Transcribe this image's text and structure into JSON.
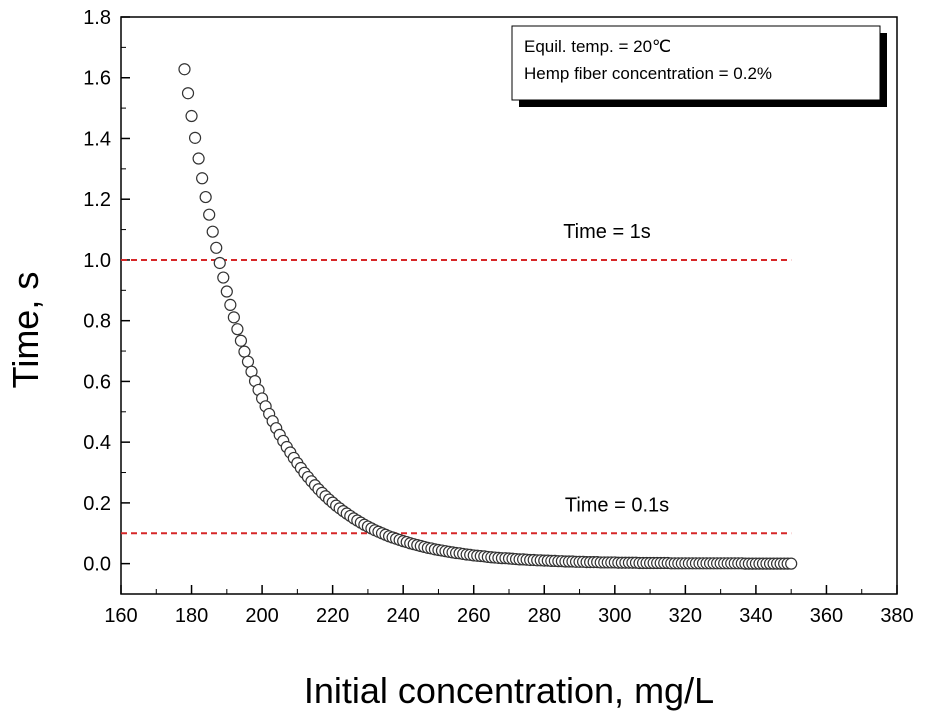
{
  "chart_data": {
    "type": "scatter",
    "xlabel": "Initial concentration, mg/L",
    "ylabel": "Time, s",
    "xlim": [
      160,
      380
    ],
    "ylim": [
      -0.1,
      1.8
    ],
    "xticks": [
      160,
      180,
      200,
      220,
      240,
      260,
      280,
      300,
      320,
      340,
      360,
      380
    ],
    "yticks": [
      0.0,
      0.2,
      0.4,
      0.6,
      0.8,
      1.0,
      1.2,
      1.4,
      1.6,
      1.8
    ],
    "ytick_labels": [
      "0.0",
      "0.2",
      "0.4",
      "0.6",
      "0.8",
      "1.0",
      "1.2",
      "1.4",
      "1.6",
      "1.8"
    ],
    "grid": false,
    "legend": {
      "placement": "top-right",
      "lines": [
        "Equil. temp. = 20℃",
        "Hemp fiber concentration = 0.2%"
      ]
    },
    "reference_lines": [
      {
        "y": 1.0,
        "label": "Time = 1s",
        "color": "#d62728",
        "style": "dashed"
      },
      {
        "y": 0.1,
        "label": "Time = 0.1s",
        "color": "#d62728",
        "style": "dashed"
      }
    ],
    "series": [
      {
        "marker": "open-circle",
        "x": [
          178,
          179,
          180,
          181,
          182,
          183,
          184,
          185,
          186,
          187,
          188,
          189,
          190,
          191,
          192,
          193,
          194,
          195,
          196,
          197,
          198,
          199,
          200,
          201,
          202,
          203,
          204,
          205,
          206,
          207,
          208,
          209,
          210,
          211,
          212,
          213,
          214,
          215,
          216,
          217,
          218,
          219,
          220,
          221,
          222,
          223,
          224,
          225,
          226,
          227,
          228,
          229,
          230,
          231,
          232,
          233,
          234,
          235,
          236,
          237,
          238,
          239,
          240,
          241,
          242,
          243,
          244,
          245,
          246,
          247,
          248,
          249,
          250,
          251,
          252,
          253,
          254,
          255,
          256,
          257,
          258,
          259,
          260,
          261,
          262,
          263,
          264,
          265,
          266,
          267,
          268,
          269,
          270,
          271,
          272,
          273,
          274,
          275,
          276,
          277,
          278,
          279,
          280,
          281,
          282,
          283,
          284,
          285,
          286,
          287,
          288,
          289,
          290,
          291,
          292,
          293,
          294,
          295,
          296,
          297,
          298,
          299,
          300,
          301,
          302,
          303,
          304,
          305,
          306,
          307,
          308,
          309,
          310,
          311,
          312,
          313,
          314,
          315,
          316,
          317,
          318,
          319,
          320,
          321,
          322,
          323,
          324,
          325,
          326,
          327,
          328,
          329,
          330,
          331,
          332,
          333,
          334,
          335,
          336,
          337,
          338,
          339,
          340,
          341,
          342,
          343,
          344,
          345,
          346,
          347,
          348,
          349,
          350
        ],
        "y": [
          1.628,
          1.549,
          1.474,
          1.402,
          1.334,
          1.269,
          1.207,
          1.149,
          1.093,
          1.04,
          0.99,
          0.942,
          0.896,
          0.852,
          0.811,
          0.772,
          0.734,
          0.698,
          0.665,
          0.632,
          0.601,
          0.572,
          0.544,
          0.518,
          0.493,
          0.469,
          0.446,
          0.424,
          0.404,
          0.384,
          0.366,
          0.348,
          0.331,
          0.315,
          0.299,
          0.285,
          0.271,
          0.258,
          0.245,
          0.233,
          0.222,
          0.211,
          0.201,
          0.191,
          0.182,
          0.173,
          0.165,
          0.157,
          0.149,
          0.142,
          0.135,
          0.128,
          0.122,
          0.116,
          0.11,
          0.105,
          0.1,
          0.095,
          0.09,
          0.086,
          0.082,
          0.078,
          0.074,
          0.071,
          0.067,
          0.064,
          0.061,
          0.058,
          0.055,
          0.052,
          0.05,
          0.047,
          0.045,
          0.043,
          0.041,
          0.039,
          0.037,
          0.035,
          0.034,
          0.032,
          0.03,
          0.029,
          0.027,
          0.026,
          0.025,
          0.024,
          0.022,
          0.021,
          0.02,
          0.019,
          0.018,
          0.018,
          0.017,
          0.016,
          0.015,
          0.014,
          0.014,
          0.013,
          0.012,
          0.012,
          0.011,
          0.011,
          0.01,
          0.01,
          0.009,
          0.009,
          0.008,
          0.008,
          0.007,
          0.007,
          0.007,
          0.006,
          0.006,
          0.006,
          0.005,
          0.005,
          0.005,
          0.005,
          0.004,
          0.004,
          0.004,
          0.004,
          0.004,
          0.003,
          0.003,
          0.003,
          0.003,
          0.003,
          0.003,
          0.002,
          0.002,
          0.002,
          0.002,
          0.002,
          0.002,
          0.002,
          0.002,
          0.002,
          0.001,
          0.001,
          0.001,
          0.001,
          0.001,
          0.001,
          0.001,
          0.001,
          0.001,
          0.001,
          0.001,
          0.001,
          0.001,
          0.001,
          0.001,
          0.001,
          0.001,
          0.001,
          0.001,
          0.001,
          0.001,
          0,
          0,
          0,
          0,
          0,
          0,
          0,
          0,
          0,
          0,
          0,
          0,
          0,
          0
        ]
      }
    ]
  }
}
